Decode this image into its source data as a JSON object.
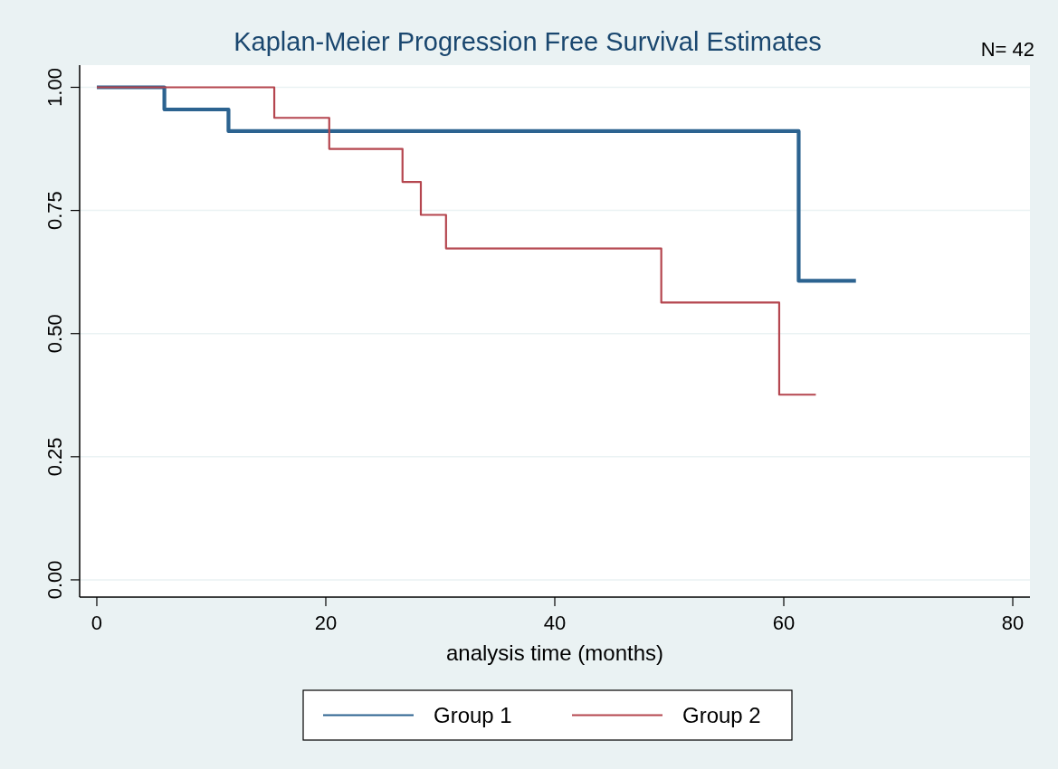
{
  "chart_data": {
    "type": "step",
    "title": "Kaplan-Meier Progression Free Survival Estimates",
    "xlabel": "analysis time (months)",
    "annotations": [
      "N= 42"
    ],
    "xlim": [
      -1.5,
      81.5
    ],
    "xticks": [
      0,
      20,
      40,
      60,
      80
    ],
    "ylim": [
      -0.035,
      1.045
    ],
    "yticks": [
      {
        "value": 0,
        "label": "0.00"
      },
      {
        "value": 0.25,
        "label": "0.25"
      },
      {
        "value": 0.5,
        "label": "0.50"
      },
      {
        "value": 0.75,
        "label": "0.75"
      },
      {
        "value": 1,
        "label": "1.00"
      }
    ],
    "grid": "y",
    "legend": "bottom",
    "marker": "none",
    "line_style": "solid",
    "series": [
      {
        "name": "Group 1",
        "color": "#2c6390",
        "x": [
          0,
          5.9,
          11.5,
          61.3,
          66.3
        ],
        "values": [
          1,
          0.955,
          0.911,
          0.607,
          0.607
        ]
      },
      {
        "name": "Group 2",
        "color": "#b5464f",
        "x": [
          0,
          15.5,
          20.3,
          26.7,
          28.3,
          30.5,
          49.3,
          59.6,
          62.8
        ],
        "values": [
          1,
          0.938,
          0.875,
          0.808,
          0.741,
          0.673,
          0.563,
          0.376,
          0.376
        ]
      }
    ]
  }
}
